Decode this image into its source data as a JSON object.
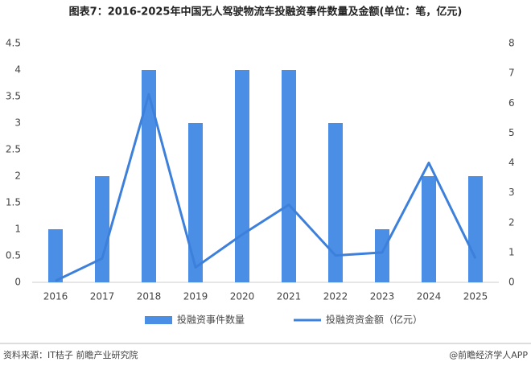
{
  "chart_data": {
    "type": "bar",
    "title": "图表7：2016-2025年中国无人驾驶物流车投融资事件数量及金额(单位：笔，亿元)",
    "categories": [
      "2016",
      "2017",
      "2018",
      "2019",
      "2020",
      "2021",
      "2022",
      "2023",
      "2024",
      "2025"
    ],
    "series": [
      {
        "name": "投融资事件数量",
        "color": "#4a8ee6",
        "type": "bar",
        "values": [
          1,
          2,
          4,
          3,
          4,
          4,
          3,
          1,
          2,
          2
        ]
      },
      {
        "name": "投融资资金额（亿元）",
        "color": "#3d80dc",
        "type": "line",
        "axis": "y2",
        "values": [
          0.05,
          0.8,
          6.3,
          0.5,
          1.6,
          2.6,
          0.9,
          1.0,
          4.0,
          0.8
        ]
      }
    ],
    "ylim": [
      0,
      4.5
    ],
    "yticks": [
      0,
      0.5,
      1,
      1.5,
      2,
      2.5,
      3,
      3.5,
      4,
      4.5
    ],
    "y2lim": [
      0,
      8
    ],
    "y2ticks": [
      0,
      1,
      2,
      3,
      4,
      5,
      6,
      7,
      8
    ],
    "legend": "bottom",
    "source": "资料来源：IT桔子 前瞻产业研究院",
    "brand": "@前瞻经济学人APP"
  }
}
